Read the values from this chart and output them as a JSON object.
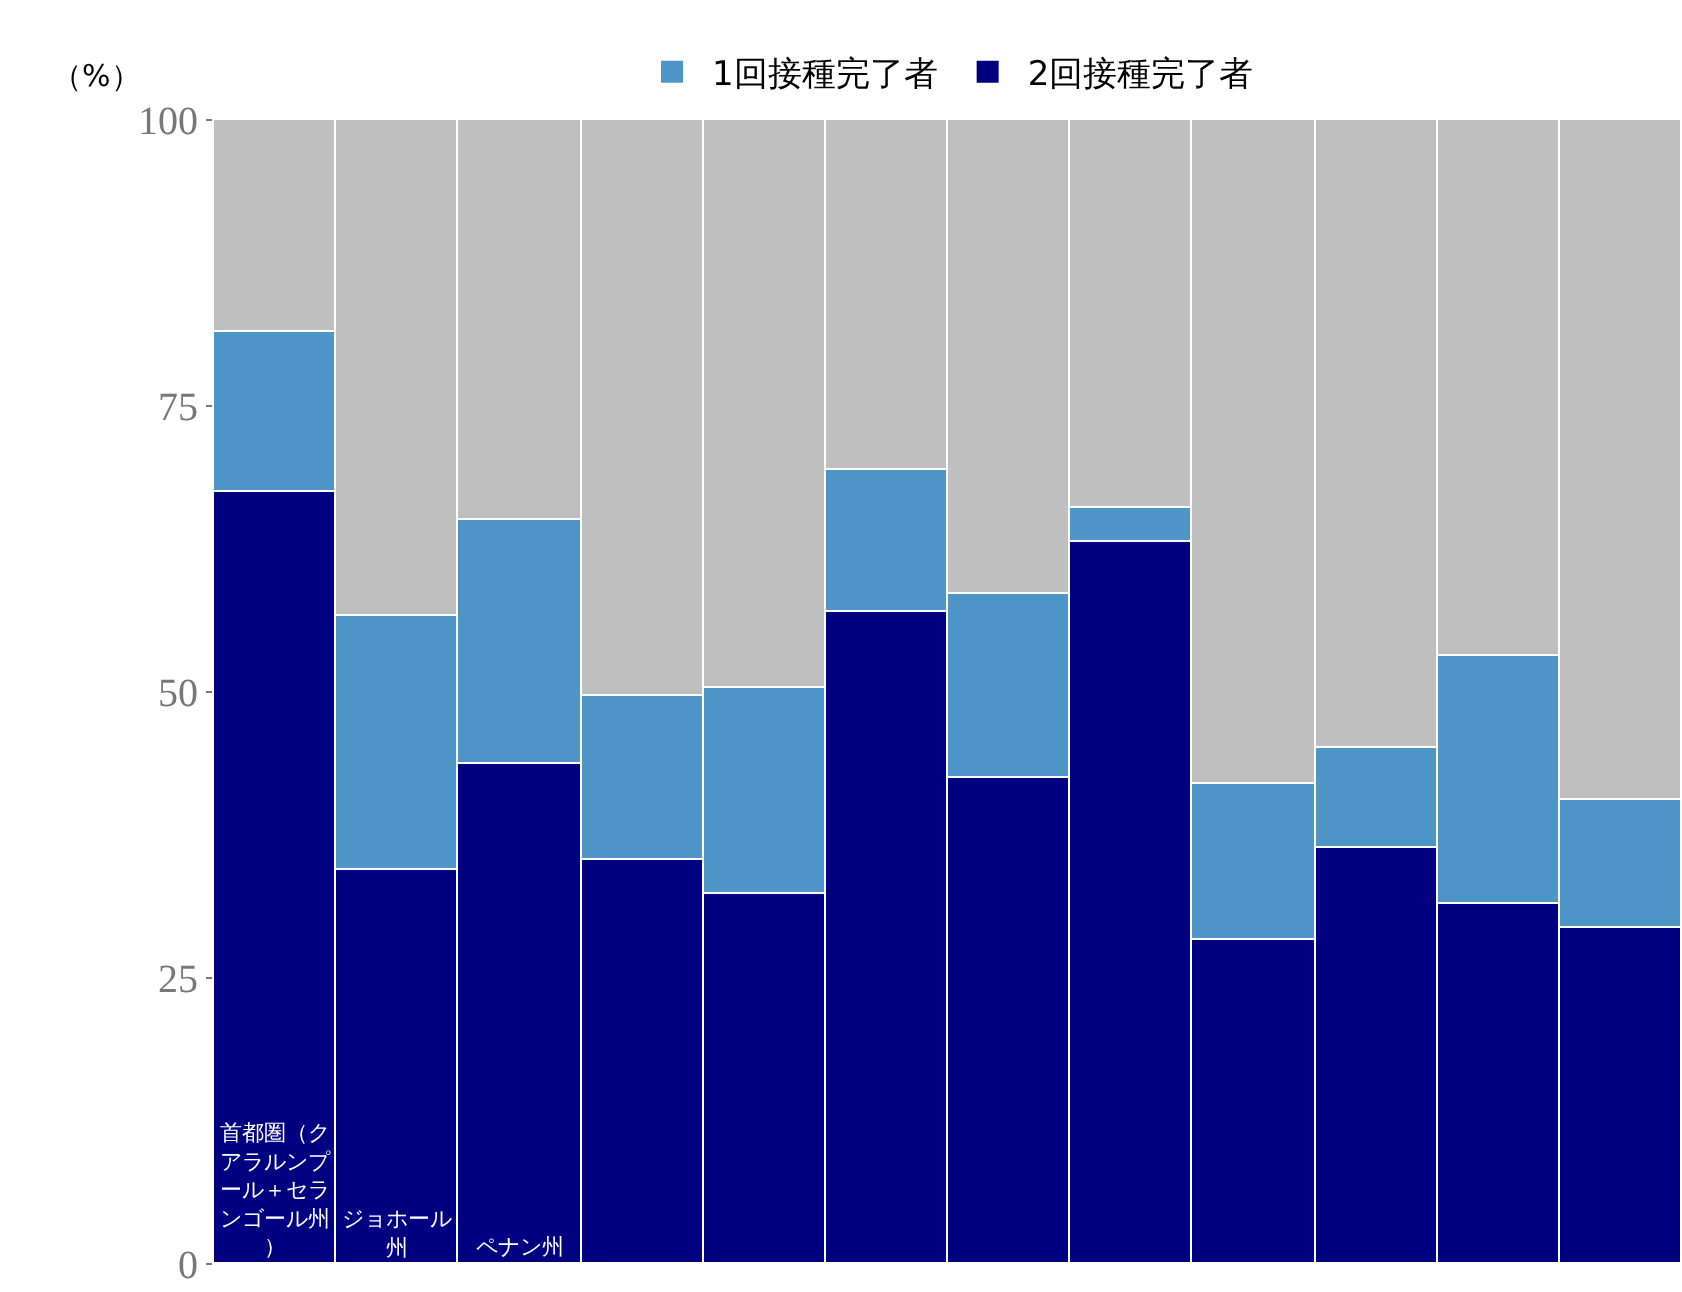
{
  "chart_data": {
    "type": "bar",
    "stacked": true,
    "ylabel": "（%）",
    "categories": [
      "首都圏（クアラルンプール＋セランゴール州）",
      "ジョホール州",
      "ペナン州",
      null,
      null,
      null,
      null,
      null,
      null,
      null,
      null,
      null
    ],
    "ylim": [
      0,
      100
    ],
    "yticks": [
      0,
      25,
      50,
      75,
      100
    ],
    "legend": "top",
    "series": [
      {
        "name": "2回接種完了者",
        "color": "#000080",
        "values": [
          67.4,
          34.4,
          43.7,
          35.4,
          32.3,
          57.0,
          42.5,
          63.2,
          28.3,
          36.3,
          31.4,
          29.4
        ]
      },
      {
        "name": "1回接種完了者",
        "color": "#4f96c8",
        "values": [
          14.1,
          22.2,
          21.4,
          14.2,
          18.0,
          12.4,
          16.0,
          2.8,
          13.7,
          8.8,
          21.8,
          11.2
        ]
      },
      {
        "color": "#bfbfbf",
        "values": [
          18.5,
          43.4,
          34.9,
          50.4,
          49.7,
          30.6,
          41.5,
          34.0,
          58.0,
          54.9,
          46.8,
          59.4
        ]
      }
    ]
  }
}
